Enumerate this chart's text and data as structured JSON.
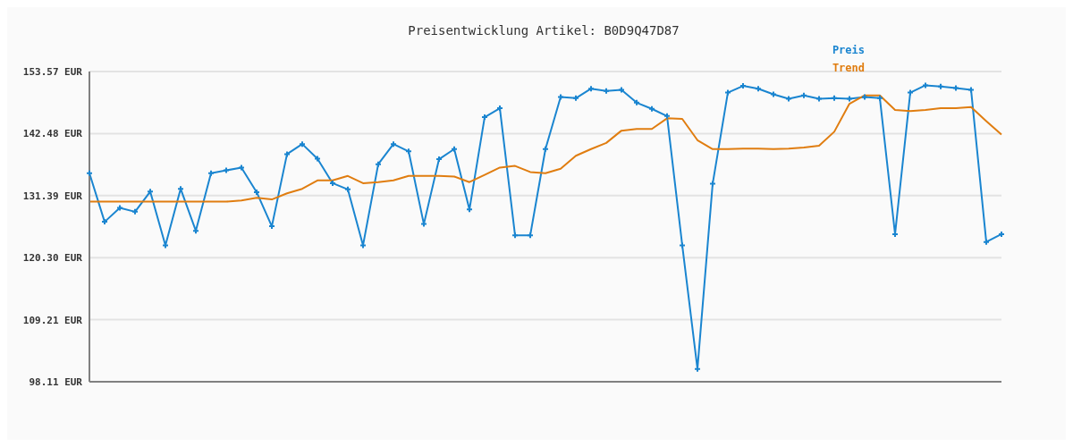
{
  "chart_data": {
    "type": "line",
    "title": "Preisentwicklung Artikel: B0D9Q47D87",
    "categories": [
      null,
      null,
      null,
      null,
      null,
      null,
      null,
      null,
      null,
      null,
      null,
      null,
      null,
      null,
      null,
      null,
      null,
      null,
      null,
      null,
      null,
      null,
      null,
      null,
      null,
      null,
      null,
      null,
      null,
      null,
      null,
      null,
      null,
      null,
      null,
      null,
      null,
      null,
      null,
      null,
      null,
      null,
      null,
      null,
      null,
      null,
      null,
      null,
      null,
      null,
      null,
      null,
      null,
      null,
      null,
      null,
      null,
      null,
      null,
      null,
      null
    ],
    "series": [
      {
        "name": "Preis",
        "color": "#1a85d0",
        "marker": "cross",
        "values": [
          135.4,
          126.7,
          129.2,
          128.5,
          132.1,
          122.5,
          132.6,
          125.1,
          135.4,
          135.9,
          136.4,
          132.0,
          125.9,
          138.8,
          140.6,
          138.0,
          133.6,
          132.5,
          122.5,
          137.0,
          140.6,
          139.3,
          126.3,
          137.9,
          139.7,
          128.9,
          145.4,
          147.0,
          124.3,
          124.3,
          139.7,
          149.0,
          148.8,
          150.5,
          150.1,
          150.3,
          148.0,
          146.9,
          145.6,
          122.5,
          100.4,
          133.5,
          149.8,
          151.0,
          150.5,
          149.5,
          148.7,
          149.3,
          148.7,
          148.8,
          148.7,
          149.0,
          148.8,
          124.5,
          149.8,
          151.1,
          150.9,
          150.6,
          150.3,
          123.1,
          124.5
        ]
      },
      {
        "name": "Trend",
        "color": "#e07d10",
        "marker": "none",
        "values": [
          130.3,
          130.3,
          130.3,
          130.3,
          130.3,
          130.3,
          130.3,
          130.3,
          130.3,
          130.3,
          130.5,
          131.0,
          130.7,
          131.8,
          132.6,
          134.1,
          134.1,
          134.9,
          133.6,
          133.8,
          134.1,
          134.9,
          134.9,
          134.9,
          134.8,
          133.8,
          135.1,
          136.4,
          136.7,
          135.6,
          135.4,
          136.2,
          138.5,
          139.7,
          140.8,
          143.0,
          143.3,
          143.3,
          145.2,
          145.1,
          141.3,
          139.7,
          139.7,
          139.8,
          139.8,
          139.7,
          139.8,
          140.0,
          140.3,
          142.8,
          147.8,
          149.3,
          149.3,
          146.7,
          146.5,
          146.7,
          147.0,
          147.0,
          147.2,
          144.7,
          142.3
        ]
      }
    ],
    "ylim": [
      98.11,
      153.57
    ],
    "yticks": [
      {
        "value": 98.11,
        "label": "98.11 EUR"
      },
      {
        "value": 109.21,
        "label": "109.21 EUR"
      },
      {
        "value": 120.3,
        "label": "120.30 EUR"
      },
      {
        "value": 131.39,
        "label": "131.39 EUR"
      },
      {
        "value": 142.48,
        "label": "142.48 EUR"
      },
      {
        "value": 153.57,
        "label": "153.57 EUR"
      }
    ],
    "grid": "y",
    "legend": "top right",
    "line_style": "solid"
  }
}
